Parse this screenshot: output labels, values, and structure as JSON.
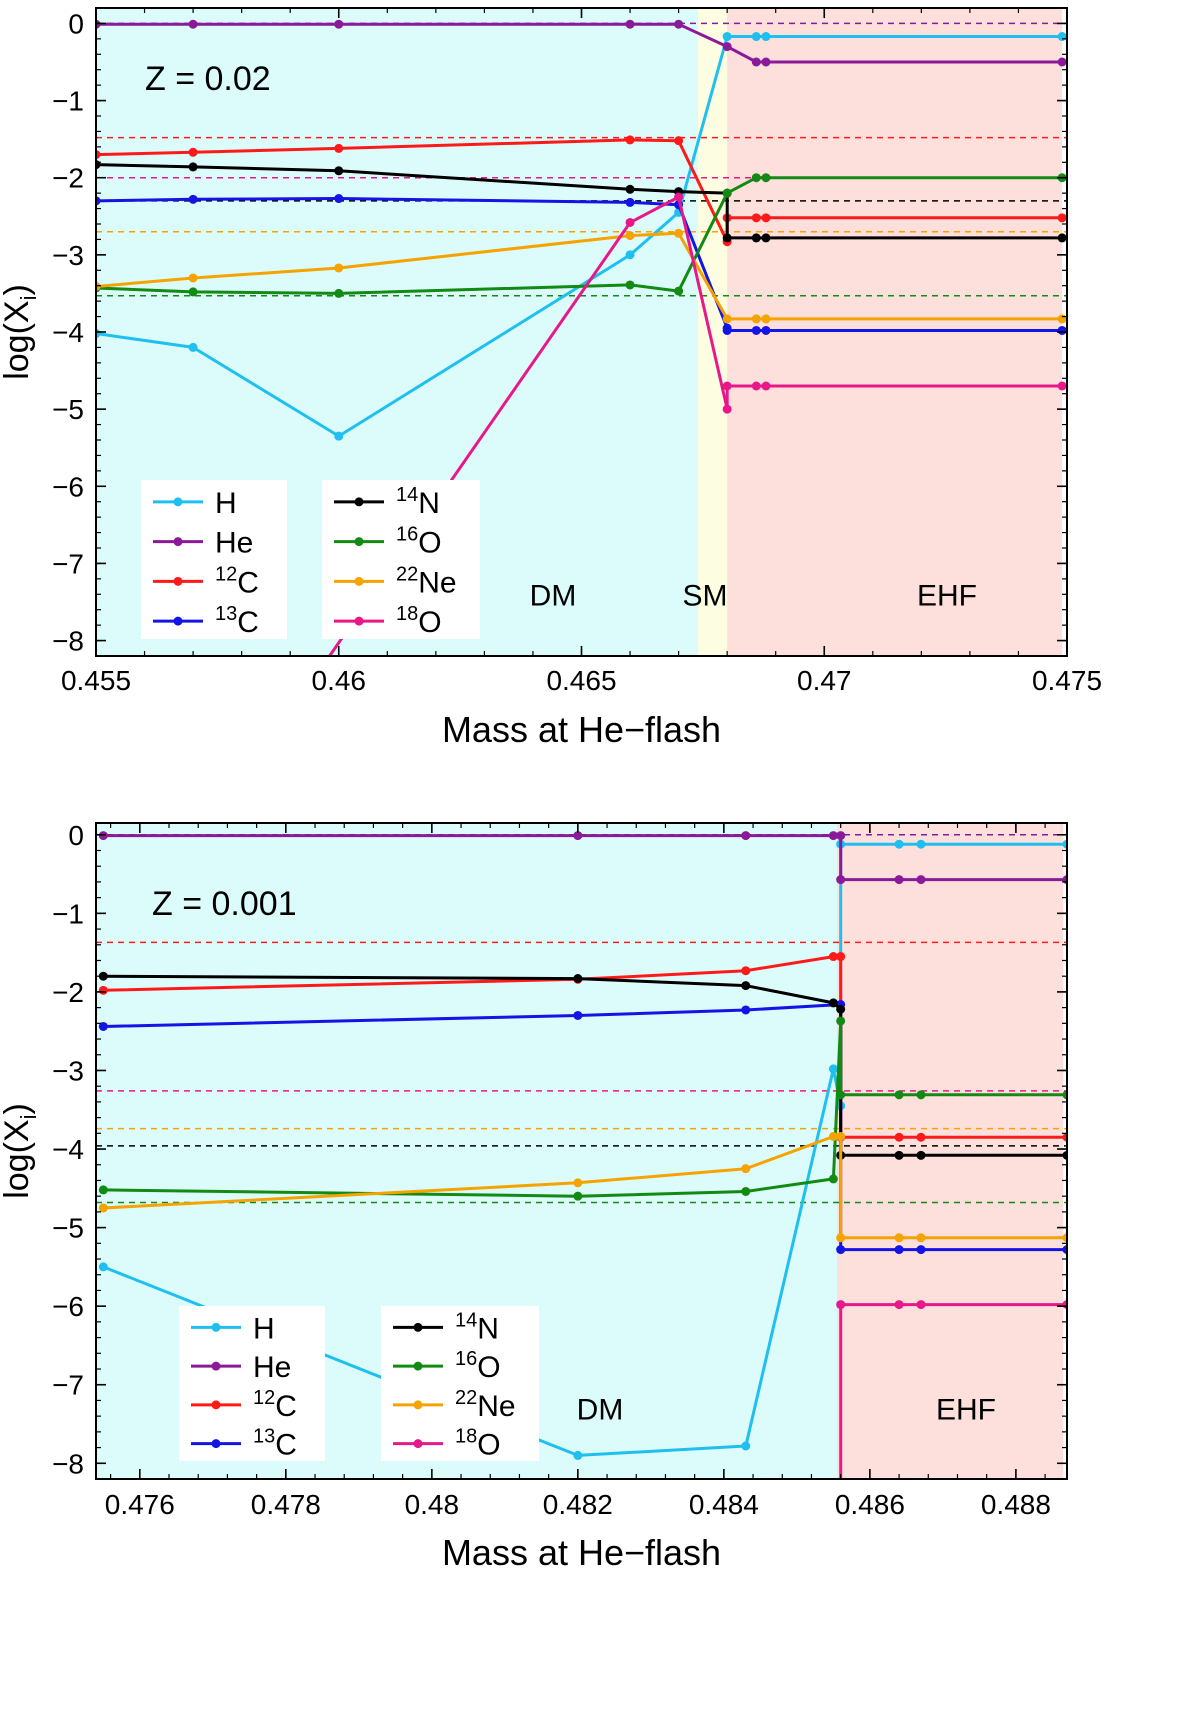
{
  "chart_data": [
    {
      "type": "line",
      "label_z": "Z = 0.02",
      "xlabel": "Mass at He−flash",
      "ylabel": "log(X",
      "ylabel_sub": "i",
      "ylabel_close": ")",
      "xlim": [
        0.455,
        0.475
      ],
      "ylim": [
        -8.2,
        0.2
      ],
      "xticks": [
        0.455,
        0.46,
        0.465,
        0.47,
        0.475
      ],
      "xtick_labels": [
        "0.455",
        "0.46",
        "0.465",
        "0.47",
        "0.475"
      ],
      "yticks": [
        0,
        -1,
        -2,
        -3,
        -4,
        -5,
        -6,
        -7,
        -8
      ],
      "ytick_labels": [
        "0",
        "−1",
        "−2",
        "−3",
        "−4",
        "−5",
        "−6",
        "−7",
        "−8"
      ],
      "regions": [
        {
          "name": "DM",
          "label": "DM",
          "x0": 0.455,
          "x1": 0.4674,
          "color": "#dcfcfc"
        },
        {
          "name": "SM",
          "label": "SM",
          "x0": 0.4674,
          "x1": 0.468,
          "color": "#fdfde1"
        },
        {
          "name": "EHF",
          "label": "EHF",
          "x0": 0.468,
          "x1": 0.4749,
          "color": "#fde0dc"
        }
      ],
      "region_label_y": -7.4,
      "dashed": [
        {
          "name": "He",
          "y": 0.0,
          "color": "#8b1a9b"
        },
        {
          "name": "12C",
          "y": -1.48,
          "color": "#ff1a1a"
        },
        {
          "name": "18O",
          "y": -2.0,
          "color": "#e8188a"
        },
        {
          "name": "14N",
          "y": -2.3,
          "color": "#000000"
        },
        {
          "name": "22Ne",
          "y": -2.7,
          "color": "#f5a300"
        },
        {
          "name": "16O",
          "y": -3.53,
          "color": "#138a13"
        }
      ],
      "series": [
        {
          "name": "H",
          "color": "#1fbff0",
          "x": [
            0.455,
            0.457,
            0.46,
            0.466,
            0.467,
            0.468,
            0.4686,
            0.4688,
            0.4749
          ],
          "y": [
            -4.02,
            -4.2,
            -5.35,
            -3.0,
            -2.45,
            -0.17,
            -0.17,
            -0.17,
            -0.17
          ]
        },
        {
          "name": "He",
          "color": "#8b1a9b",
          "x": [
            0.455,
            0.457,
            0.46,
            0.466,
            0.467,
            0.468,
            0.4686,
            0.4688,
            0.4749
          ],
          "y": [
            -0.01,
            -0.01,
            -0.01,
            -0.01,
            -0.01,
            -0.3,
            -0.5,
            -0.5,
            -0.5
          ]
        },
        {
          "name": "12C",
          "color": "#ff1a1a",
          "x": [
            0.455,
            0.457,
            0.46,
            0.466,
            0.467,
            0.468,
            0.468,
            0.4686,
            0.4688,
            0.4749
          ],
          "y": [
            -1.7,
            -1.67,
            -1.62,
            -1.51,
            -1.52,
            -2.83,
            -2.52,
            -2.52,
            -2.52,
            -2.52
          ]
        },
        {
          "name": "13C",
          "color": "#1414e6",
          "x": [
            0.455,
            0.457,
            0.46,
            0.466,
            0.467,
            0.468,
            0.468,
            0.4686,
            0.4688,
            0.4749
          ],
          "y": [
            -2.3,
            -2.28,
            -2.27,
            -2.32,
            -2.35,
            -3.95,
            -3.98,
            -3.98,
            -3.98,
            -3.98
          ]
        },
        {
          "name": "14N",
          "color": "#000000",
          "x": [
            0.455,
            0.457,
            0.46,
            0.466,
            0.467,
            0.468,
            0.468,
            0.4686,
            0.4688,
            0.4749
          ],
          "y": [
            -1.83,
            -1.86,
            -1.91,
            -2.15,
            -2.18,
            -2.2,
            -2.78,
            -2.78,
            -2.78,
            -2.78
          ]
        },
        {
          "name": "16O",
          "color": "#138a13",
          "x": [
            0.455,
            0.457,
            0.46,
            0.466,
            0.467,
            0.468,
            0.4686,
            0.4688,
            0.4749
          ],
          "y": [
            -3.43,
            -3.48,
            -3.5,
            -3.39,
            -3.47,
            -2.2,
            -2.0,
            -2.0,
            -2.0
          ]
        },
        {
          "name": "22Ne",
          "color": "#f5a300",
          "x": [
            0.455,
            0.457,
            0.46,
            0.466,
            0.467,
            0.468,
            0.4686,
            0.4688,
            0.4749
          ],
          "y": [
            -3.41,
            -3.3,
            -3.17,
            -2.75,
            -2.72,
            -3.83,
            -3.83,
            -3.83,
            -3.83
          ]
        },
        {
          "name": "18O",
          "color": "#e8188a",
          "x": [
            0.4597,
            0.466,
            0.467,
            0.468,
            0.468,
            0.4686,
            0.4688,
            0.4749
          ],
          "y": [
            -8.3,
            -2.58,
            -2.25,
            -5.0,
            -4.7,
            -4.7,
            -4.7,
            -4.7
          ]
        }
      ],
      "legend": {
        "position": "bottom-left",
        "col1": [
          "H",
          "He",
          "12C",
          "13C"
        ],
        "col2": [
          "14N",
          "16O",
          "22Ne",
          "18O"
        ]
      }
    },
    {
      "type": "line",
      "label_z": "Z = 0.001",
      "xlabel": "Mass at He−flash",
      "ylabel": "log(X",
      "ylabel_sub": "i",
      "ylabel_close": ")",
      "xlim": [
        0.4754,
        0.4887
      ],
      "ylim": [
        -8.2,
        0.15
      ],
      "xticks": [
        0.476,
        0.478,
        0.48,
        0.482,
        0.484,
        0.486,
        0.488
      ],
      "xtick_labels": [
        "0.476",
        "0.478",
        "0.48",
        "0.482",
        "0.484",
        "0.486",
        "0.488"
      ],
      "yticks": [
        0,
        -1,
        -2,
        -3,
        -4,
        -5,
        -6,
        -7,
        -8
      ],
      "ytick_labels": [
        "0",
        "−1",
        "−2",
        "−3",
        "−4",
        "−5",
        "−6",
        "−7",
        "−8"
      ],
      "regions": [
        {
          "name": "DM",
          "label": "DM",
          "x0": 0.4754,
          "x1": 0.48555,
          "color": "#dcfcfc"
        },
        {
          "name": "EHF",
          "label": "EHF",
          "x0": 0.48555,
          "x1": 0.48865,
          "color": "#fde0dc"
        }
      ],
      "region_label_y": -7.3,
      "dashed": [
        {
          "name": "He",
          "y": 0.0,
          "color": "#8b1a9b"
        },
        {
          "name": "12C",
          "y": -1.37,
          "color": "#ff1a1a"
        },
        {
          "name": "18O",
          "y": -3.26,
          "color": "#e8188a"
        },
        {
          "name": "22Ne",
          "y": -3.74,
          "color": "#f5a300"
        },
        {
          "name": "14N",
          "y": -3.96,
          "color": "#000000"
        },
        {
          "name": "16O",
          "y": -4.68,
          "color": "#138a13"
        }
      ],
      "series": [
        {
          "name": "H",
          "color": "#1fbff0",
          "x": [
            0.4755,
            0.482,
            0.4843,
            0.4855,
            0.4856,
            0.4856,
            0.4864,
            0.4867,
            0.4887
          ],
          "y": [
            -5.5,
            -7.9,
            -7.78,
            -2.98,
            -3.45,
            -0.12,
            -0.12,
            -0.12,
            -0.12
          ]
        },
        {
          "name": "He",
          "color": "#8b1a9b",
          "x": [
            0.4755,
            0.482,
            0.4843,
            0.4855,
            0.4856,
            0.4856,
            0.4864,
            0.4867,
            0.4887
          ],
          "y": [
            -0.01,
            -0.01,
            -0.01,
            -0.01,
            -0.01,
            -0.57,
            -0.57,
            -0.57,
            -0.57
          ]
        },
        {
          "name": "12C",
          "color": "#ff1a1a",
          "x": [
            0.4755,
            0.482,
            0.4843,
            0.4855,
            0.4856,
            0.4856,
            0.4864,
            0.4867,
            0.4887
          ],
          "y": [
            -1.98,
            -1.84,
            -1.73,
            -1.55,
            -1.55,
            -3.85,
            -3.85,
            -3.85,
            -3.85
          ]
        },
        {
          "name": "13C",
          "color": "#1414e6",
          "x": [
            0.4755,
            0.482,
            0.4843,
            0.4856,
            0.4856,
            0.4864,
            0.4867,
            0.4887
          ],
          "y": [
            -2.44,
            -2.3,
            -2.23,
            -2.16,
            -5.28,
            -5.28,
            -5.28,
            -5.28
          ]
        },
        {
          "name": "14N",
          "color": "#000000",
          "x": [
            0.4755,
            0.482,
            0.4843,
            0.4855,
            0.4856,
            0.4856,
            0.4864,
            0.4867,
            0.4887
          ],
          "y": [
            -1.8,
            -1.83,
            -1.92,
            -2.14,
            -2.22,
            -4.08,
            -4.08,
            -4.08,
            -4.08
          ]
        },
        {
          "name": "16O",
          "color": "#138a13",
          "x": [
            0.4755,
            0.482,
            0.4843,
            0.4855,
            0.4856,
            0.4856,
            0.4864,
            0.4867,
            0.4887
          ],
          "y": [
            -4.52,
            -4.6,
            -4.54,
            -4.38,
            -2.37,
            -3.31,
            -3.31,
            -3.31,
            -3.31
          ]
        },
        {
          "name": "22Ne",
          "color": "#f5a300",
          "x": [
            0.4755,
            0.482,
            0.4843,
            0.4855,
            0.4856,
            0.4856,
            0.4864,
            0.4867,
            0.4887
          ],
          "y": [
            -4.75,
            -4.43,
            -4.25,
            -3.84,
            -3.84,
            -5.13,
            -5.13,
            -5.13,
            -5.13
          ]
        },
        {
          "name": "18O",
          "color": "#e8188a",
          "x": [
            0.4856,
            0.4856,
            0.4864,
            0.4867,
            0.4887
          ],
          "y": [
            -8.3,
            -5.98,
            -5.98,
            -5.98,
            -5.98
          ]
        }
      ],
      "legend": {
        "position": "bottom-left",
        "col1": [
          "H",
          "He",
          "12C",
          "13C"
        ],
        "col2": [
          "14N",
          "16O",
          "22Ne",
          "18O"
        ]
      }
    }
  ]
}
